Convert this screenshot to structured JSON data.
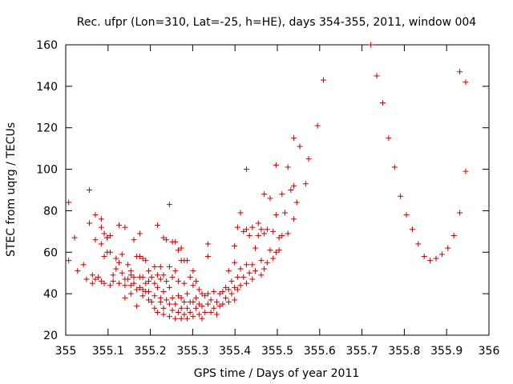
{
  "chart_data": {
    "type": "scatter",
    "title": "Rec. ufpr (Lon=310, Lat=-25, h=HE), days 354-355, 2011, window 004",
    "xlabel": "GPS time / Days of year 2011",
    "ylabel": "STEC from uqrg / TECUs",
    "xlim": [
      355,
      356
    ],
    "ylim": [
      20,
      160
    ],
    "xticks": [
      355,
      355.1,
      355.2,
      355.3,
      355.4,
      355.5,
      355.6,
      355.7,
      355.8,
      355.9,
      356
    ],
    "xtick_labels": [
      "355",
      "355.1",
      "355.2",
      "355.3",
      "355.4",
      "355.5",
      "355.6",
      "355.7",
      "355.8",
      "355.9",
      "356"
    ],
    "yticks": [
      20,
      40,
      60,
      80,
      100,
      120,
      140,
      160
    ],
    "ytick_labels": [
      "20",
      "40",
      "60",
      "80",
      "100",
      "120",
      "140",
      "160"
    ],
    "grid": false,
    "legend": "none",
    "marker": "+",
    "color": "#c00000",
    "points": [
      [
        355.007,
        84
      ],
      [
        355.007,
        56
      ],
      [
        355.021,
        67
      ],
      [
        355.028,
        51
      ],
      [
        355.042,
        54
      ],
      [
        355.049,
        47
      ],
      [
        355.056,
        90
      ],
      [
        355.056,
        74
      ],
      [
        355.063,
        49
      ],
      [
        355.063,
        45
      ],
      [
        355.07,
        78
      ],
      [
        355.07,
        66
      ],
      [
        355.07,
        47
      ],
      [
        355.077,
        48
      ],
      [
        355.084,
        76
      ],
      [
        355.084,
        72
      ],
      [
        355.084,
        64
      ],
      [
        355.084,
        46
      ],
      [
        355.091,
        69
      ],
      [
        355.091,
        58
      ],
      [
        355.091,
        45
      ],
      [
        355.098,
        67
      ],
      [
        355.098,
        60
      ],
      [
        355.098,
        67
      ],
      [
        355.105,
        68
      ],
      [
        355.105,
        60
      ],
      [
        355.105,
        44
      ],
      [
        355.112,
        46
      ],
      [
        355.112,
        49
      ],
      [
        355.119,
        57
      ],
      [
        355.119,
        52
      ],
      [
        355.126,
        73
      ],
      [
        355.126,
        55
      ],
      [
        355.126,
        45
      ],
      [
        355.133,
        59
      ],
      [
        355.133,
        50
      ],
      [
        355.14,
        72
      ],
      [
        355.14,
        47
      ],
      [
        355.14,
        44
      ],
      [
        355.14,
        38
      ],
      [
        355.147,
        54
      ],
      [
        355.147,
        47
      ],
      [
        355.154,
        49
      ],
      [
        355.154,
        51
      ],
      [
        355.154,
        44
      ],
      [
        355.154,
        40
      ],
      [
        355.161,
        66
      ],
      [
        355.161,
        48
      ],
      [
        355.161,
        45
      ],
      [
        355.168,
        58
      ],
      [
        355.168,
        42
      ],
      [
        355.168,
        34
      ],
      [
        355.175,
        69
      ],
      [
        355.175,
        58
      ],
      [
        355.175,
        48
      ],
      [
        355.175,
        43
      ],
      [
        355.182,
        57
      ],
      [
        355.182,
        48
      ],
      [
        355.182,
        42
      ],
      [
        355.182,
        39
      ],
      [
        355.189,
        56
      ],
      [
        355.189,
        45
      ],
      [
        355.189,
        41
      ],
      [
        355.196,
        51
      ],
      [
        355.196,
        46
      ],
      [
        355.196,
        41
      ],
      [
        355.196,
        37
      ],
      [
        355.203,
        48
      ],
      [
        355.203,
        36
      ],
      [
        355.21,
        53
      ],
      [
        355.21,
        45
      ],
      [
        355.21,
        39
      ],
      [
        355.21,
        33
      ],
      [
        355.217,
        73
      ],
      [
        355.217,
        49
      ],
      [
        355.217,
        43
      ],
      [
        355.217,
        31
      ],
      [
        355.224,
        53
      ],
      [
        355.224,
        47
      ],
      [
        355.224,
        38
      ],
      [
        355.224,
        36
      ],
      [
        355.231,
        67
      ],
      [
        355.231,
        49
      ],
      [
        355.231,
        41
      ],
      [
        355.231,
        33
      ],
      [
        355.231,
        30
      ],
      [
        355.238,
        66
      ],
      [
        355.238,
        46
      ],
      [
        355.238,
        37
      ],
      [
        355.245,
        83
      ],
      [
        355.245,
        53
      ],
      [
        355.245,
        43
      ],
      [
        355.245,
        35
      ],
      [
        355.245,
        29
      ],
      [
        355.252,
        65
      ],
      [
        355.252,
        48
      ],
      [
        355.252,
        38
      ],
      [
        355.252,
        32
      ],
      [
        355.259,
        65
      ],
      [
        355.259,
        51
      ],
      [
        355.259,
        35
      ],
      [
        355.259,
        28
      ],
      [
        355.266,
        61
      ],
      [
        355.266,
        46
      ],
      [
        355.266,
        39
      ],
      [
        355.266,
        31
      ],
      [
        355.273,
        62
      ],
      [
        355.273,
        56
      ],
      [
        355.273,
        38
      ],
      [
        355.273,
        33
      ],
      [
        355.273,
        28
      ],
      [
        355.28,
        56
      ],
      [
        355.28,
        45
      ],
      [
        355.28,
        36
      ],
      [
        355.28,
        30
      ],
      [
        355.287,
        56
      ],
      [
        355.287,
        40
      ],
      [
        355.287,
        33
      ],
      [
        355.287,
        28
      ],
      [
        355.294,
        48
      ],
      [
        355.294,
        36
      ],
      [
        355.294,
        31
      ],
      [
        355.301,
        51
      ],
      [
        355.301,
        44
      ],
      [
        355.301,
        36
      ],
      [
        355.301,
        29
      ],
      [
        355.308,
        46
      ],
      [
        355.308,
        38
      ],
      [
        355.308,
        33
      ],
      [
        355.315,
        42
      ],
      [
        355.315,
        35
      ],
      [
        355.315,
        30
      ],
      [
        355.322,
        40
      ],
      [
        355.322,
        34
      ],
      [
        355.322,
        28
      ],
      [
        355.329,
        39
      ],
      [
        355.329,
        31
      ],
      [
        355.336,
        64
      ],
      [
        355.336,
        58
      ],
      [
        355.336,
        40
      ],
      [
        355.336,
        35
      ],
      [
        355.343,
        37
      ],
      [
        355.343,
        31
      ],
      [
        355.35,
        41
      ],
      [
        355.35,
        33
      ],
      [
        355.357,
        36
      ],
      [
        355.357,
        30
      ],
      [
        355.364,
        40
      ],
      [
        355.364,
        34
      ],
      [
        355.371,
        41
      ],
      [
        355.371,
        35
      ],
      [
        355.378,
        43
      ],
      [
        355.378,
        38
      ],
      [
        355.385,
        51
      ],
      [
        355.385,
        42
      ],
      [
        355.385,
        36
      ],
      [
        355.392,
        46
      ],
      [
        355.392,
        40
      ],
      [
        355.399,
        63
      ],
      [
        355.399,
        55
      ],
      [
        355.399,
        43
      ],
      [
        355.399,
        37
      ],
      [
        355.406,
        72
      ],
      [
        355.406,
        48
      ],
      [
        355.406,
        42
      ],
      [
        355.413,
        79
      ],
      [
        355.413,
        52
      ],
      [
        355.413,
        44
      ],
      [
        355.42,
        70
      ],
      [
        355.42,
        48
      ],
      [
        355.427,
        100
      ],
      [
        355.427,
        71
      ],
      [
        355.427,
        54
      ],
      [
        355.427,
        45
      ],
      [
        355.434,
        68
      ],
      [
        355.434,
        50
      ],
      [
        355.441,
        72
      ],
      [
        355.441,
        54
      ],
      [
        355.441,
        47
      ],
      [
        355.448,
        62
      ],
      [
        355.448,
        51
      ],
      [
        355.455,
        74
      ],
      [
        355.455,
        68
      ],
      [
        355.462,
        71
      ],
      [
        355.462,
        56
      ],
      [
        355.462,
        49
      ],
      [
        355.469,
        88
      ],
      [
        355.469,
        69
      ],
      [
        355.469,
        52
      ],
      [
        355.476,
        71
      ],
      [
        355.476,
        55
      ],
      [
        355.483,
        86
      ],
      [
        355.483,
        61
      ],
      [
        355.49,
        70
      ],
      [
        355.49,
        57
      ],
      [
        355.497,
        102
      ],
      [
        355.497,
        78
      ],
      [
        355.497,
        60
      ],
      [
        355.504,
        67
      ],
      [
        355.504,
        61
      ],
      [
        355.511,
        88
      ],
      [
        355.511,
        68
      ],
      [
        355.518,
        79
      ],
      [
        355.525,
        101
      ],
      [
        355.525,
        69
      ],
      [
        355.532,
        90
      ],
      [
        355.539,
        115
      ],
      [
        355.539,
        92
      ],
      [
        355.539,
        76
      ],
      [
        355.546,
        84
      ],
      [
        355.553,
        111
      ],
      [
        355.567,
        93
      ],
      [
        355.574,
        105
      ],
      [
        355.595,
        121
      ],
      [
        355.609,
        143
      ],
      [
        355.721,
        160
      ],
      [
        355.735,
        145
      ],
      [
        355.749,
        132
      ],
      [
        355.763,
        115
      ],
      [
        355.777,
        101
      ],
      [
        355.791,
        87
      ],
      [
        355.805,
        78
      ],
      [
        355.819,
        71
      ],
      [
        355.833,
        64
      ],
      [
        355.847,
        58
      ],
      [
        355.861,
        56
      ],
      [
        355.875,
        57
      ],
      [
        355.889,
        59
      ],
      [
        355.903,
        62
      ],
      [
        355.917,
        68
      ],
      [
        355.931,
        79
      ],
      [
        355.931,
        147
      ],
      [
        355.945,
        142
      ],
      [
        355.945,
        99
      ]
    ]
  }
}
